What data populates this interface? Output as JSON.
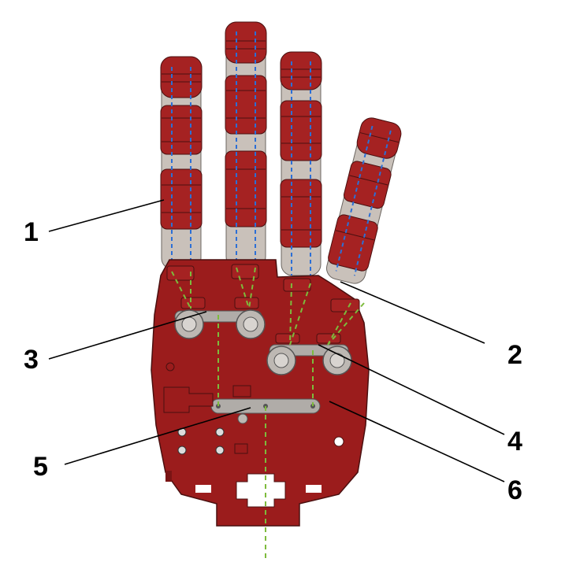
{
  "colors": {
    "plate": "#9b1c1c",
    "plate_edge": "#4a1010",
    "finger_core": "#c9c1ba",
    "segment": "#a52222",
    "tendon_green": "#7dbb3c",
    "tendon_blue": "#2c6fd6",
    "pulley_bar": "#b0aca8",
    "pulley_wheel": "#bdb8b3",
    "leader": "#000000"
  },
  "callouts": [
    {
      "id": "1",
      "label": "1"
    },
    {
      "id": "2",
      "label": "2"
    },
    {
      "id": "3",
      "label": "3"
    },
    {
      "id": "4",
      "label": "4"
    },
    {
      "id": "5",
      "label": "5"
    },
    {
      "id": "6",
      "label": "6"
    }
  ]
}
